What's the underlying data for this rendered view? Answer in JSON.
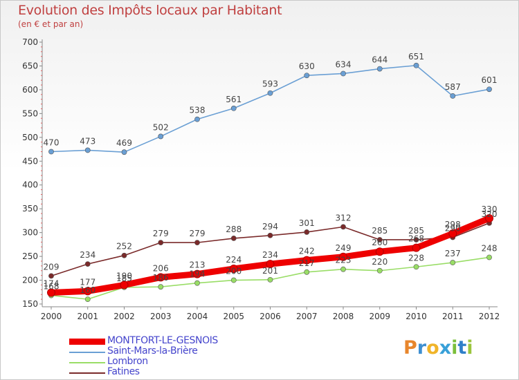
{
  "title": "Evolution des Impôts locaux par Habitant",
  "subtitle": "(en € et par an)",
  "logo": {
    "text": "Proxiti",
    "letter_colors": [
      "#e8862c",
      "#3e8fd1",
      "#f0b429",
      "#38a0d8",
      "#7bbf3b",
      "#2f7fc8",
      "#9bc53d"
    ]
  },
  "chart_data": {
    "type": "line",
    "title": "Evolution des Impôts locaux par Habitant",
    "subtitle": "(en € et par an)",
    "x": [
      "2000",
      "2001",
      "2002",
      "2003",
      "2004",
      "2005",
      "2006",
      "2007",
      "2008",
      "2009",
      "2010",
      "2011",
      "2012"
    ],
    "ylim": [
      150,
      700
    ],
    "yticks": [
      150,
      200,
      250,
      300,
      350,
      400,
      450,
      500,
      550,
      600,
      650,
      700
    ],
    "grid": false,
    "legend_position": "bottom-left",
    "series": [
      {
        "name": "MONTFORT-LE-GESNOIS",
        "color": "#ee0000",
        "values": [
          174,
          177,
          190,
          206,
          213,
          224,
          234,
          242,
          249,
          260,
          268,
          298,
          330
        ],
        "labels": [
          "174",
          "177",
          "190",
          "206",
          "213",
          "224",
          "234",
          "242",
          "249",
          "260",
          "268",
          "298",
          "330"
        ]
      },
      {
        "name": "Saint-Mars-la-Brière",
        "color": "#6a9fd4",
        "values": [
          470,
          473,
          469,
          502,
          538,
          561,
          593,
          630,
          634,
          644,
          651,
          587,
          601
        ],
        "labels": [
          "470",
          "473",
          "469",
          "502",
          "538",
          "561",
          "593",
          "630",
          "634",
          "644",
          "651",
          "587",
          "601"
        ]
      },
      {
        "name": "Lombron",
        "color": "#99dd66",
        "values": [
          168,
          160,
          185,
          186,
          194,
          200,
          201,
          217,
          223,
          220,
          228,
          237,
          248
        ],
        "labels": [
          "168",
          "160",
          "185",
          "186",
          "194",
          "200",
          "201",
          "217",
          "223",
          "220",
          "228",
          "237",
          "248"
        ]
      },
      {
        "name": "Fatines",
        "color": "#7a2a2a",
        "values": [
          209,
          234,
          252,
          279,
          279,
          288,
          294,
          301,
          312,
          285,
          285,
          290,
          320
        ],
        "labels": [
          "209",
          "234",
          "252",
          "279",
          "279",
          "288",
          "294",
          "301",
          "312",
          "285",
          "285",
          "290",
          "320"
        ]
      }
    ]
  }
}
